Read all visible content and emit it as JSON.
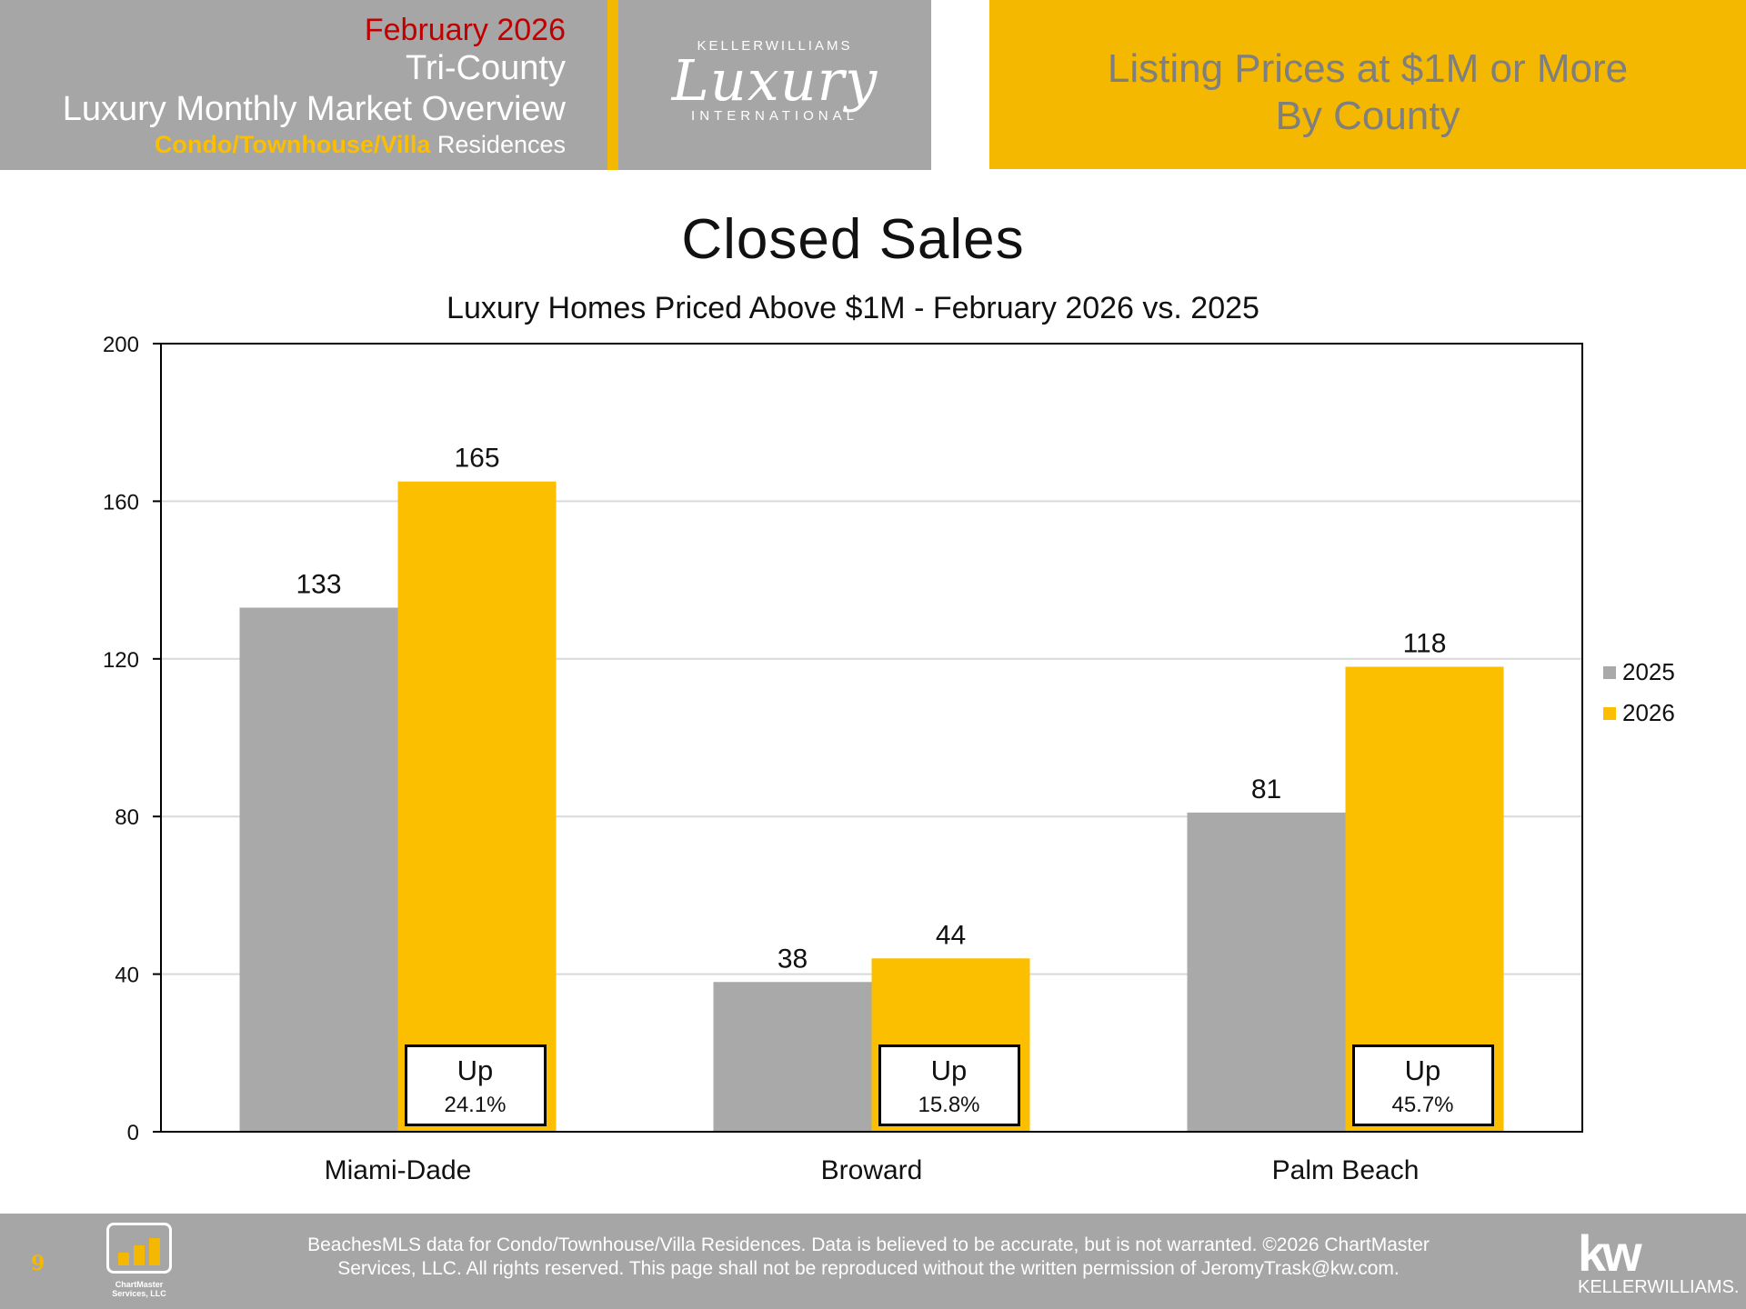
{
  "header": {
    "date": "February 2026",
    "region": "Tri-County",
    "report_title": "Luxury Monthly Market Overview",
    "property_type_highlight": "Condo/Townhouse/Villa",
    "property_type_suffix": "Residences",
    "logo_top": "KELLERWILLIAMS",
    "logo_script": "Luxury",
    "logo_bottom": "INTERNATIONAL",
    "section_line1": "Listing Prices at $1M or More",
    "section_line2": "By County"
  },
  "chart_data": {
    "type": "bar",
    "title": "Closed Sales",
    "subtitle": "Luxury Homes Priced Above $1M - February 2026 vs. 2025",
    "categories": [
      "Miami-Dade",
      "Broward",
      "Palm Beach"
    ],
    "series": [
      {
        "name": "2025",
        "values": [
          133,
          38,
          81
        ],
        "color": "#a9a9a9"
      },
      {
        "name": "2026",
        "values": [
          165,
          44,
          118
        ],
        "color": "#fbbf00"
      }
    ],
    "ylim": [
      0,
      200
    ],
    "yticks": [
      0,
      40,
      80,
      120,
      160,
      200
    ],
    "grid": true,
    "legend": "right",
    "annotations": [
      {
        "category": "Miami-Dade",
        "line1": "Up",
        "line2": "24.1%"
      },
      {
        "category": "Broward",
        "line1": "Up",
        "line2": "15.8%"
      },
      {
        "category": "Palm Beach",
        "line1": "Up",
        "line2": "45.7%"
      }
    ]
  },
  "footer": {
    "page_number": "9",
    "company_logo_line1": "ChartMaster",
    "company_logo_line2": "Services, LLC",
    "disclaimer_line1": "BeachesMLS data for Condo/Townhouse/Villa Residences.  Data is believed to be accurate, but is not warranted.   ©2026  ChartMaster",
    "disclaimer_line2": "Services, LLC.  All rights reserved. This page shall not be reproduced without the written permission of JeromyTrask@kw.com.",
    "kw_mark": "kw",
    "kw_name": "KELLERWILLIAMS."
  }
}
